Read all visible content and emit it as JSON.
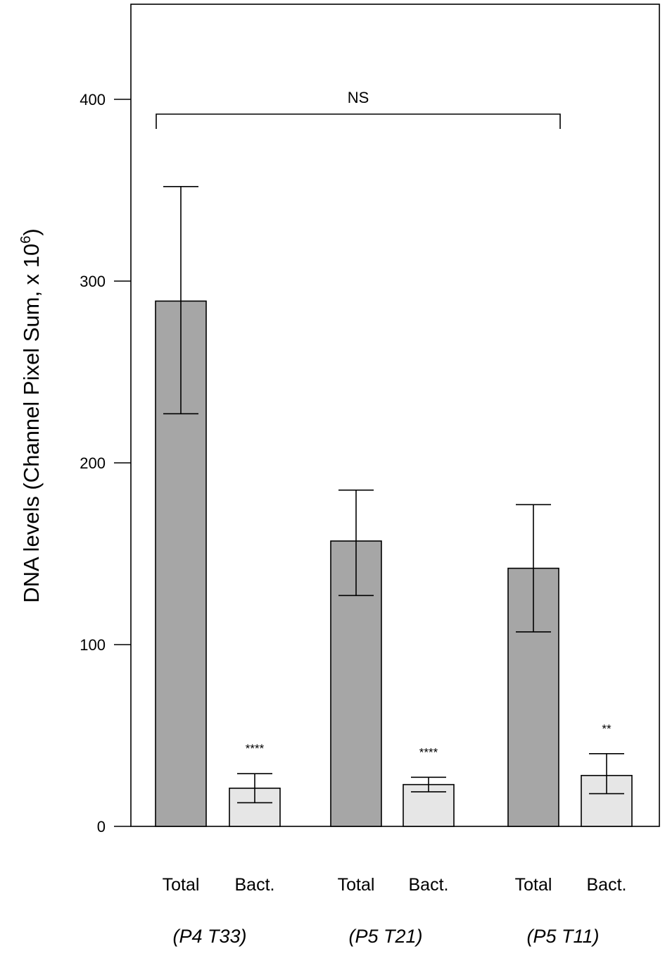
{
  "chart_data": {
    "type": "bar",
    "ylabel_main": "DNA levels (Channel Pixel Sum, x 10",
    "ylabel_sup": "6",
    "ylabel_end": ")",
    "ylim": [
      0,
      450
    ],
    "yticks": [
      0,
      100,
      200,
      300,
      400
    ],
    "ytick_labels": [
      "0",
      "100",
      "200",
      "300",
      "400"
    ],
    "categories": [
      "Total",
      "Bact.",
      "Total",
      "Bact.",
      "Total",
      "Bact."
    ],
    "groups": [
      "(P4 T33)",
      "(P5 T21)",
      "(P5 T11)"
    ],
    "values": [
      289,
      21,
      157,
      23,
      142,
      28
    ],
    "err_low": [
      227,
      13,
      127,
      19,
      107,
      18
    ],
    "err_high": [
      352,
      29,
      185,
      27,
      177,
      40
    ],
    "bar_fill": [
      "#a6a6a6",
      "#e6e6e6",
      "#a6a6a6",
      "#e6e6e6",
      "#a6a6a6",
      "#e6e6e6"
    ],
    "significance": [
      "",
      "****",
      "",
      "****",
      "",
      "**"
    ],
    "bracket_label": "NS",
    "bracket_from": 0,
    "bracket_to": 4,
    "bracket_y": 400
  }
}
